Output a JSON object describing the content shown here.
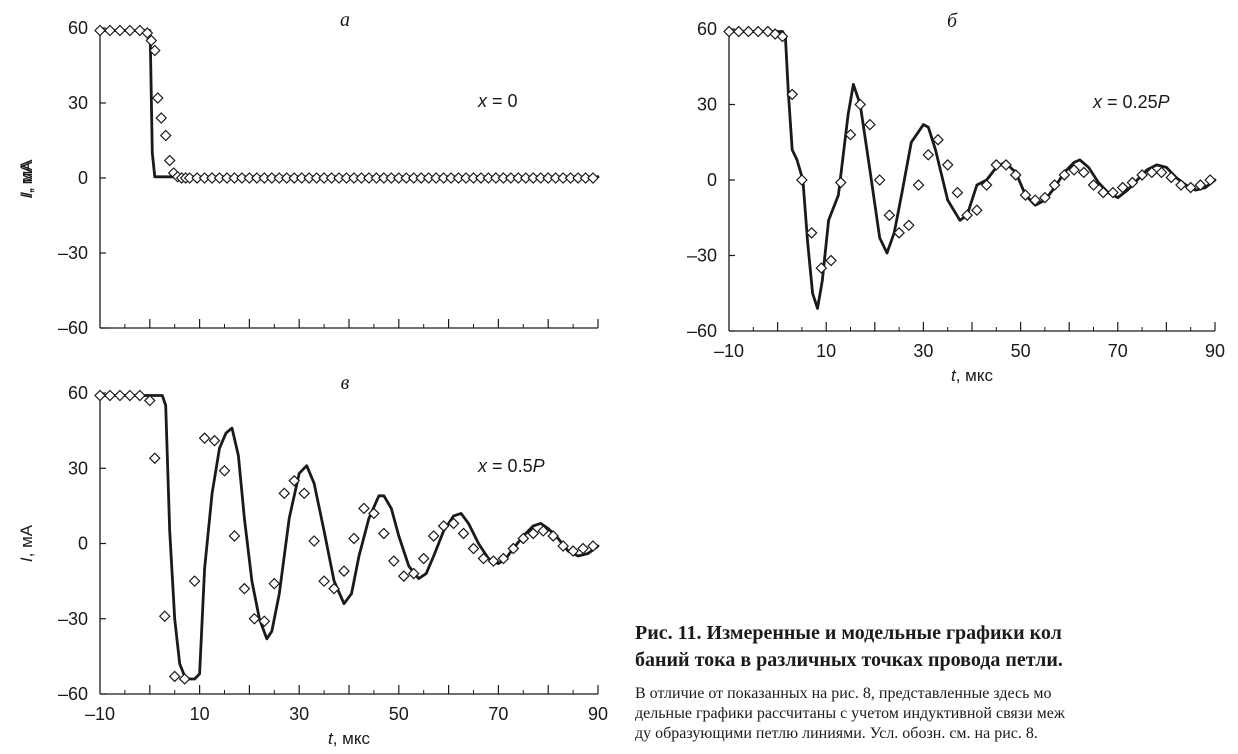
{
  "chart_data": [
    {
      "type": "line",
      "panel_label": "а",
      "annotation": "x = 0",
      "ylabel": "I, мА",
      "xlabel": "",
      "xlim": [
        -10,
        90
      ],
      "ylim": [
        -60,
        60
      ],
      "yticks": [
        60,
        30,
        0,
        -30,
        -60
      ],
      "ytick_labels": [
        "60",
        "30",
        "0",
        "–30",
        "–60"
      ],
      "xticks": [],
      "xtick_labels": [],
      "series": [
        {
          "style": "solid-line",
          "x": [
            -10,
            0,
            0.1,
            0.5,
            1.0,
            90
          ],
          "y": [
            59,
            59,
            55,
            10,
            0.5,
            0.5
          ]
        },
        {
          "style": "diamond-markers",
          "x": [
            -10,
            -8,
            -6,
            -4,
            -2,
            -0.5,
            0.3,
            1,
            1.6,
            2.3,
            3.2,
            4,
            4.8,
            5.6,
            6.4,
            7.2,
            8,
            9.5,
            11,
            12.5,
            14,
            15.5,
            17,
            18.5,
            20,
            21.5,
            23,
            24.5,
            26,
            27.5,
            29,
            30.5,
            32,
            33.5,
            35,
            36.5,
            38,
            39.5,
            41,
            42.5,
            44,
            45.5,
            47,
            48.5,
            50,
            51.5,
            53,
            54.5,
            56,
            57.5,
            59,
            60.5,
            62,
            63.5,
            65,
            66.5,
            68,
            69.5,
            71,
            72.5,
            74,
            75.5,
            77,
            78.5,
            80,
            81.5,
            83,
            84.5,
            86,
            87.5,
            89
          ],
          "y": [
            59,
            59,
            59,
            59,
            59,
            58,
            55,
            51,
            32,
            24,
            17,
            7,
            2,
            0.5,
            0,
            0,
            0,
            0,
            0,
            0,
            0,
            0,
            0,
            0,
            0,
            0,
            0,
            0,
            0,
            0,
            0,
            0,
            0,
            0,
            0,
            0,
            0,
            0,
            0,
            0,
            0,
            0,
            0,
            0,
            0,
            0,
            0,
            0,
            0,
            0,
            0,
            0,
            0,
            0,
            0,
            0,
            0,
            0,
            0,
            0,
            0,
            0,
            0,
            0,
            0,
            0,
            0,
            0,
            0,
            0,
            0
          ]
        }
      ]
    },
    {
      "type": "line",
      "panel_label": "б",
      "annotation": "x = 0.25P",
      "ylabel": "I, мА",
      "xlabel": "t, мкс",
      "xlim": [
        -10,
        90
      ],
      "ylim": [
        -60,
        60
      ],
      "yticks": [
        60,
        30,
        0,
        -30,
        -60
      ],
      "ytick_labels": [
        "60",
        "30",
        "0",
        "–30",
        "–60"
      ],
      "xticks": [
        -10,
        10,
        30,
        50,
        70,
        90
      ],
      "xtick_labels": [
        "–10",
        "10",
        "30",
        "50",
        "70",
        "90"
      ],
      "series": [
        {
          "style": "solid-line",
          "x": [
            -10,
            1,
            1.6,
            2.2,
            3,
            4,
            5.2,
            6.2,
            7.2,
            8.2,
            9.2,
            10.5,
            12.5,
            14.5,
            15.6,
            17,
            19,
            21,
            22.5,
            24,
            25.5,
            27.5,
            30,
            31,
            32.5,
            35,
            37.5,
            39,
            41,
            43,
            45,
            46.8,
            49,
            51,
            53,
            55,
            57,
            59,
            61,
            62.2,
            64,
            66,
            68,
            70,
            72,
            74,
            76,
            78,
            80,
            82,
            84,
            86,
            88,
            90
          ],
          "y": [
            59,
            59,
            57,
            35,
            12,
            8,
            0,
            -25,
            -45,
            -51,
            -40,
            -16,
            -6,
            26,
            38,
            30,
            4,
            -23,
            -29,
            -21,
            -6,
            15,
            22,
            21,
            12,
            -8,
            -16,
            -14,
            -2,
            0,
            5,
            7,
            3,
            -6,
            -10,
            -8,
            -3,
            3,
            7,
            8,
            5,
            -1,
            -5,
            -7,
            -4,
            0,
            4,
            6,
            5,
            1,
            -2,
            -4,
            -3,
            0
          ]
        },
        {
          "style": "diamond-markers",
          "x": [
            -10,
            -8,
            -6,
            -4,
            -2,
            -0.5,
            1,
            3,
            5,
            7,
            9,
            11,
            13,
            15,
            17,
            19,
            21,
            23,
            25,
            27,
            29,
            31,
            33,
            35,
            37,
            39,
            41,
            43,
            45,
            47,
            49,
            51,
            53,
            55,
            57,
            59,
            61,
            63,
            65,
            67,
            69,
            71,
            73,
            75,
            77,
            79,
            81,
            83,
            85,
            87,
            89
          ],
          "y": [
            59,
            59,
            59,
            59,
            59,
            58,
            57,
            34,
            0,
            -21,
            -35,
            -32,
            -1,
            18,
            30,
            22,
            0,
            -14,
            -21,
            -18,
            -2,
            10,
            16,
            6,
            -5,
            -14,
            -12,
            -2,
            6,
            6,
            2,
            -6,
            -8,
            -7,
            -2,
            2,
            4,
            3,
            -2,
            -5,
            -5,
            -3,
            -1,
            2,
            3,
            3,
            1,
            -2,
            -3,
            -2,
            0
          ]
        }
      ]
    },
    {
      "type": "line",
      "panel_label": "в",
      "annotation": "x = 0.5P",
      "ylabel": "I, мА",
      "xlabel": "t, мкс",
      "xlim": [
        -10,
        90
      ],
      "ylim": [
        -60,
        60
      ],
      "yticks": [
        60,
        30,
        0,
        -30,
        -60
      ],
      "ytick_labels": [
        "60",
        "30",
        "0",
        "–30",
        "–60"
      ],
      "xticks": [
        -10,
        10,
        30,
        50,
        70,
        90
      ],
      "xtick_labels": [
        "–10",
        "10",
        "30",
        "50",
        "70",
        "90"
      ],
      "series": [
        {
          "style": "solid-line",
          "x": [
            -10,
            2.5,
            3.2,
            4,
            5,
            6,
            7,
            8,
            9,
            10,
            11,
            12.5,
            14,
            15.3,
            16.5,
            17.8,
            19,
            20.5,
            22,
            23.5,
            24.5,
            26,
            28,
            30,
            31.5,
            33,
            35,
            37,
            39,
            40.5,
            42,
            44,
            46,
            47,
            48.5,
            50,
            52,
            54,
            55.5,
            57,
            59,
            61,
            62.5,
            64,
            66,
            68,
            70,
            71.5,
            73,
            75,
            77,
            78.5,
            80,
            82,
            84,
            86,
            88,
            90
          ],
          "y": [
            59,
            59,
            55,
            5,
            -30,
            -48,
            -53,
            -54,
            -54,
            -52,
            -10,
            20,
            38,
            44,
            46,
            35,
            10,
            -15,
            -30,
            -38,
            -35,
            -20,
            10,
            28,
            31,
            24,
            5,
            -15,
            -24,
            -20,
            -5,
            10,
            19,
            19,
            14,
            3,
            -9,
            -14,
            -12,
            -5,
            5,
            11,
            12,
            8,
            0,
            -6,
            -8,
            -6,
            -2,
            3,
            7,
            8,
            6,
            2,
            -3,
            -5,
            -4,
            -1
          ]
        },
        {
          "style": "diamond-markers",
          "x": [
            -10,
            -8,
            -6,
            -4,
            -2,
            0,
            1,
            3,
            5,
            7,
            9,
            11,
            13,
            15,
            17,
            19,
            21,
            23,
            25,
            27,
            29,
            31,
            33,
            35,
            37,
            39,
            41,
            43,
            45,
            47,
            49,
            51,
            53,
            55,
            57,
            59,
            61,
            63,
            65,
            67,
            69,
            71,
            73,
            75,
            77,
            79,
            81,
            83,
            85,
            87,
            89
          ],
          "y": [
            59,
            59,
            59,
            59,
            59,
            57,
            34,
            -29,
            -53,
            -54,
            -15,
            42,
            41,
            29,
            3,
            -18,
            -30,
            -31,
            -16,
            20,
            25,
            20,
            1,
            -15,
            -18,
            -11,
            2,
            14,
            12,
            4,
            -7,
            -13,
            -12,
            -6,
            3,
            7,
            8,
            4,
            -2,
            -6,
            -7,
            -6,
            -2,
            2,
            4,
            5,
            3,
            -1,
            -3,
            -2,
            -1
          ]
        }
      ]
    }
  ],
  "caption": {
    "title_line1": "Рис. 11. Измеренные и модельные графики кол",
    "title_line2": "баний тока в различных точках провода петли.",
    "text_line1": "В отличие от показанных на рис. 8, представленные здесь мо",
    "text_line2": "дельные графики рассчитаны с учетом индуктивной связи меж",
    "text_line3": "ду образующими петлю линиями. Усл. обозн. см. на рис. 8."
  }
}
